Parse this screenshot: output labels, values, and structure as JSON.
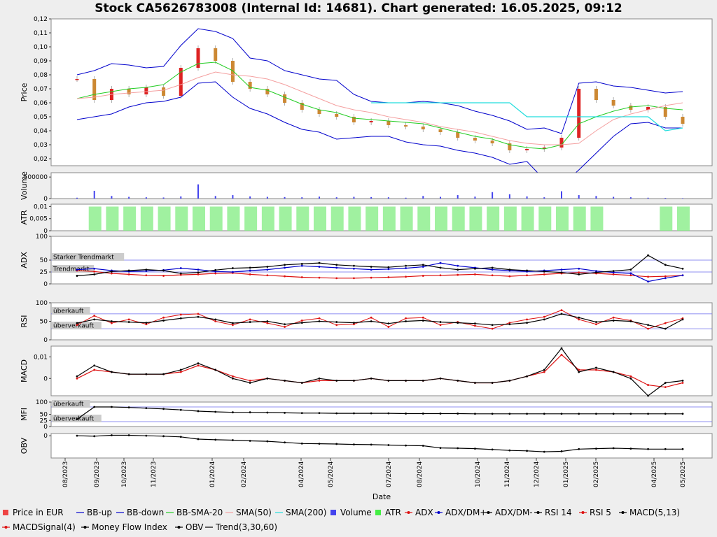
{
  "chart_data": {
    "type": "line",
    "title": "Stock CA5626783008 (Internal Id: 14681). Chart generated: 16.05.2025, 09:12",
    "xlabel": "Date",
    "x_ticks": [
      "08/2023",
      "09/2023",
      "10/2023",
      "11/2023",
      "01/2024",
      "02/2024",
      "04/2024",
      "05/2024",
      "07/2024",
      "08/2024",
      "10/2024",
      "11/2024",
      "12/2024",
      "01/2025",
      "02/2025",
      "04/2025",
      "05/2025"
    ],
    "panels": [
      {
        "key": "price",
        "ylabel": "Price",
        "ylim": [
          0.015,
          0.12
        ],
        "ticks": [
          "0,12",
          "0,11",
          "0,10",
          "0,09",
          "0,08",
          "0,07",
          "0,06",
          "0,05",
          "0,04",
          "0,03",
          "0,02"
        ]
      },
      {
        "key": "volume",
        "ylabel": "Volume",
        "ylim": [
          0,
          600000
        ],
        "ticks": [
          "500000",
          "0"
        ]
      },
      {
        "key": "atr",
        "ylabel": "ATR",
        "ylim": [
          0,
          0.011
        ],
        "ticks": [
          "0,01",
          "0,005",
          "0"
        ]
      },
      {
        "key": "adx",
        "ylabel": "ADX",
        "ylim": [
          0,
          100
        ],
        "ticks": [
          "100",
          "50",
          "25",
          "0"
        ],
        "bands": [
          {
            "label": "Starker Trendmarkt",
            "value": 50
          },
          {
            "label": "Trendmarkt",
            "value": 25
          }
        ]
      },
      {
        "key": "rsi",
        "ylabel": "RSI",
        "ylim": [
          0,
          100
        ],
        "ticks": [
          "100",
          "50",
          "0"
        ],
        "bands": [
          {
            "label": "überkauft",
            "value": 70
          },
          {
            "label": "überverkauft",
            "value": 30
          }
        ]
      },
      {
        "key": "macd",
        "ylabel": "MACD",
        "ylim": [
          -0.008,
          0.015
        ],
        "ticks": [
          "0,01",
          "0"
        ]
      },
      {
        "key": "mfi",
        "ylabel": "MFI",
        "ylim": [
          0,
          100
        ],
        "ticks": [
          "100",
          "50",
          "25",
          "0"
        ],
        "bands": [
          {
            "label": "überkauft",
            "value": 80
          },
          {
            "label": "überverkauft",
            "value": 20
          }
        ]
      },
      {
        "key": "obv",
        "ylabel": "OBV",
        "ylim": [
          -1,
          0.1
        ],
        "ticks": [
          "0"
        ]
      }
    ],
    "series": {
      "bb_up": [
        0.08,
        0.083,
        0.088,
        0.087,
        0.085,
        0.086,
        0.101,
        0.113,
        0.111,
        0.106,
        0.092,
        0.09,
        0.083,
        0.08,
        0.077,
        0.076,
        0.066,
        0.061,
        0.06,
        0.06,
        0.061,
        0.06,
        0.058,
        0.054,
        0.051,
        0.047,
        0.041,
        0.042,
        0.038,
        0.074,
        0.075,
        0.072,
        0.071,
        0.069,
        0.067,
        0.068
      ],
      "bb_down": [
        0.048,
        0.05,
        0.052,
        0.057,
        0.06,
        0.061,
        0.064,
        0.074,
        0.075,
        0.064,
        0.056,
        0.052,
        0.046,
        0.041,
        0.039,
        0.034,
        0.035,
        0.036,
        0.036,
        0.032,
        0.03,
        0.029,
        0.026,
        0.024,
        0.021,
        0.016,
        0.018,
        0.005,
        0.001,
        0.012,
        0.024,
        0.036,
        0.045,
        0.046,
        0.042,
        0.042
      ],
      "bb_sma": [
        0.063,
        0.066,
        0.068,
        0.07,
        0.071,
        0.073,
        0.082,
        0.088,
        0.089,
        0.083,
        0.071,
        0.069,
        0.064,
        0.059,
        0.055,
        0.053,
        0.049,
        0.048,
        0.047,
        0.046,
        0.045,
        0.042,
        0.039,
        0.036,
        0.034,
        0.03,
        0.028,
        0.027,
        0.03,
        0.045,
        0.05,
        0.054,
        0.057,
        0.058,
        0.056,
        0.055
      ],
      "sma50": [
        0.063,
        0.064,
        0.066,
        0.067,
        0.068,
        0.069,
        0.073,
        0.078,
        0.082,
        0.08,
        0.079,
        0.077,
        0.073,
        0.068,
        0.063,
        0.058,
        0.055,
        0.053,
        0.05,
        0.048,
        0.046,
        0.043,
        0.041,
        0.039,
        0.036,
        0.033,
        0.031,
        0.03,
        0.03,
        0.031,
        0.04,
        0.048,
        0.052,
        0.055,
        0.058,
        0.06
      ],
      "sma200": [
        null,
        null,
        null,
        null,
        null,
        null,
        null,
        null,
        null,
        null,
        null,
        null,
        null,
        null,
        null,
        null,
        null,
        0.06,
        0.06,
        0.06,
        0.06,
        0.06,
        0.06,
        0.06,
        0.06,
        0.06,
        0.05,
        0.05,
        0.05,
        0.05,
        0.05,
        0.05,
        0.05,
        0.05,
        0.04,
        0.042
      ],
      "close": [
        0.077,
        0.062,
        0.07,
        0.066,
        0.071,
        0.065,
        0.085,
        0.099,
        0.09,
        0.075,
        0.07,
        0.066,
        0.06,
        0.055,
        0.052,
        0.05,
        0.046,
        0.047,
        0.044,
        0.043,
        0.041,
        0.039,
        0.035,
        0.033,
        0.031,
        0.026,
        0.027,
        0.028,
        0.035,
        0.07,
        0.062,
        0.058,
        0.055,
        0.057,
        0.05,
        0.045
      ],
      "volume": [
        20000,
        180000,
        60000,
        40000,
        30000,
        25000,
        50000,
        330000,
        60000,
        80000,
        50000,
        40000,
        35000,
        30000,
        45000,
        30000,
        40000,
        35000,
        30000,
        20000,
        60000,
        40000,
        80000,
        45000,
        150000,
        100000,
        50000,
        30000,
        170000,
        80000,
        60000,
        40000,
        30000,
        20000,
        15000,
        10000
      ],
      "atr": [
        0,
        0.01,
        0.01,
        0.01,
        0.01,
        0.01,
        0.01,
        0.01,
        0.01,
        0.01,
        0.01,
        0.01,
        0.01,
        0.01,
        0.01,
        0.01,
        0.01,
        0.01,
        0.01,
        0.01,
        0.01,
        0.01,
        0.01,
        0.01,
        0.01,
        0.01,
        0.01,
        0.01,
        0.01,
        0.01,
        0.01,
        0,
        0,
        0,
        0.01,
        0.01
      ],
      "adx": [
        28,
        26,
        22,
        20,
        18,
        17,
        19,
        20,
        22,
        23,
        20,
        18,
        16,
        14,
        13,
        12,
        12,
        13,
        14,
        15,
        17,
        18,
        19,
        20,
        18,
        16,
        18,
        20,
        22,
        24,
        22,
        20,
        18,
        15,
        16,
        18
      ],
      "di_plus": [
        30,
        32,
        28,
        26,
        27,
        29,
        33,
        30,
        26,
        25,
        28,
        30,
        34,
        38,
        36,
        34,
        32,
        30,
        31,
        33,
        36,
        44,
        38,
        34,
        30,
        28,
        26,
        28,
        30,
        32,
        27,
        24,
        22,
        5,
        12,
        18
      ],
      "di_minus": [
        17,
        20,
        26,
        28,
        30,
        28,
        22,
        24,
        29,
        33,
        34,
        36,
        40,
        42,
        44,
        40,
        38,
        36,
        35,
        38,
        40,
        34,
        30,
        32,
        34,
        30,
        28,
        26,
        24,
        20,
        24,
        27,
        30,
        60,
        40,
        32
      ],
      "rsi14": [
        45,
        55,
        50,
        48,
        46,
        52,
        58,
        62,
        55,
        45,
        48,
        50,
        42,
        46,
        50,
        48,
        46,
        50,
        44,
        50,
        52,
        48,
        46,
        44,
        40,
        42,
        46,
        55,
        70,
        60,
        48,
        52,
        50,
        40,
        30,
        55
      ],
      "rsi5": [
        40,
        65,
        45,
        55,
        42,
        60,
        68,
        70,
        50,
        40,
        55,
        45,
        35,
        52,
        58,
        40,
        42,
        60,
        35,
        58,
        60,
        40,
        48,
        38,
        30,
        46,
        55,
        62,
        80,
        55,
        42,
        60,
        52,
        30,
        45,
        58
      ],
      "macd": [
        0.001,
        0.006,
        0.003,
        0.002,
        0.002,
        0.002,
        0.004,
        0.007,
        0.004,
        0.0,
        -0.002,
        0.0,
        -0.001,
        -0.002,
        0.0,
        -0.001,
        -0.001,
        0.0,
        -0.001,
        -0.001,
        -0.001,
        0.0,
        -0.001,
        -0.002,
        -0.002,
        -0.001,
        0.001,
        0.004,
        0.014,
        0.003,
        0.005,
        0.003,
        0.0,
        -0.008,
        -0.002,
        -0.001
      ],
      "macd_signal": [
        0.0,
        0.004,
        0.003,
        0.002,
        0.002,
        0.002,
        0.003,
        0.006,
        0.004,
        0.001,
        -0.001,
        0.0,
        -0.001,
        -0.002,
        -0.001,
        -0.001,
        -0.001,
        0.0,
        -0.001,
        -0.001,
        -0.001,
        0.0,
        -0.001,
        -0.002,
        -0.002,
        -0.001,
        0.001,
        0.003,
        0.011,
        0.004,
        0.004,
        0.003,
        0.001,
        -0.003,
        -0.004,
        -0.002
      ],
      "mfi": [
        30,
        80,
        80,
        78,
        75,
        72,
        68,
        63,
        60,
        58,
        58,
        57,
        56,
        55,
        55,
        54,
        54,
        54,
        54,
        53,
        53,
        53,
        53,
        52,
        52,
        52,
        52,
        52,
        52,
        52,
        52,
        52,
        52,
        52,
        52,
        52
      ],
      "obv": [
        0.0,
        -0.02,
        0.02,
        0.02,
        0.0,
        -0.02,
        -0.05,
        -0.15,
        -0.18,
        -0.2,
        -0.23,
        -0.25,
        -0.3,
        -0.35,
        -0.36,
        -0.37,
        -0.39,
        -0.4,
        -0.42,
        -0.44,
        -0.45,
        -0.55,
        -0.56,
        -0.58,
        -0.62,
        -0.66,
        -0.68,
        -0.72,
        -0.7,
        -0.6,
        -0.58,
        -0.56,
        -0.58,
        -0.6,
        -0.6,
        -0.6
      ]
    },
    "legend": [
      {
        "label": "Price in EUR",
        "color": "#ee4444",
        "kind": "box"
      },
      {
        "label": "BB-up",
        "color": "#0000cc",
        "kind": "line"
      },
      {
        "label": "BB-down",
        "color": "#0000cc",
        "kind": "line"
      },
      {
        "label": "BB-SMA-20",
        "color": "#22cc22",
        "kind": "line"
      },
      {
        "label": "SMA(50)",
        "color": "#f4a0a0",
        "kind": "line"
      },
      {
        "label": "SMA(200)",
        "color": "#22dddd",
        "kind": "line"
      },
      {
        "label": "Volume",
        "color": "#4444ee",
        "kind": "box"
      },
      {
        "label": "ATR",
        "color": "#44ee44",
        "kind": "box"
      },
      {
        "label": "ADX",
        "color": "#dd1111",
        "kind": "dotline"
      },
      {
        "label": "ADX/DM+",
        "color": "#0000cc",
        "kind": "dotline"
      },
      {
        "label": "ADX/DM-",
        "color": "#000000",
        "kind": "dotline"
      },
      {
        "label": "RSI 14",
        "color": "#000000",
        "kind": "dotline"
      },
      {
        "label": "RSI 5",
        "color": "#dd1111",
        "kind": "dotline"
      },
      {
        "label": "MACD(5,13)",
        "color": "#000000",
        "kind": "dotline"
      },
      {
        "label": "MACDSignal(4)",
        "color": "#dd1111",
        "kind": "dotline"
      },
      {
        "label": "Money Flow Index",
        "color": "#000000",
        "kind": "dotline"
      },
      {
        "label": "OBV",
        "color": "#000000",
        "kind": "dotline"
      },
      {
        "label": "Trend(3,30,60)",
        "color": "#000000",
        "kind": "line"
      }
    ],
    "colors": {
      "up": "#dd2222",
      "down": "#cc8833",
      "bg": "#ffffff",
      "page": "#eeeeee",
      "grid": "#d0d0d0"
    }
  }
}
